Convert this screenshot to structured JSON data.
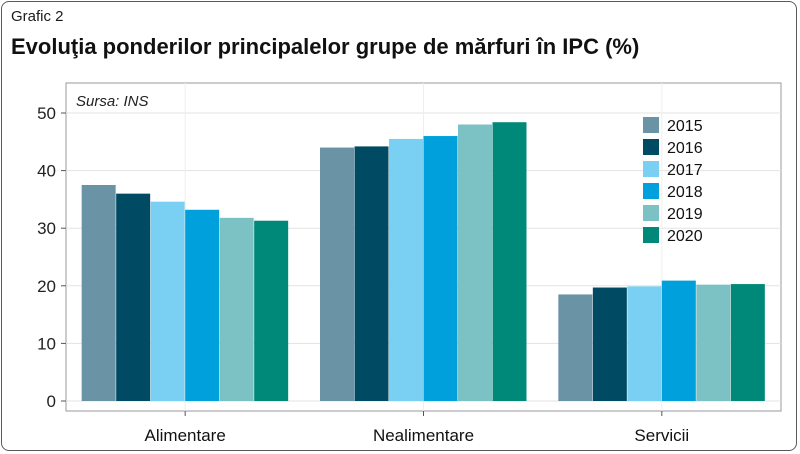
{
  "figure_label": "Grafic 2",
  "chart_data": {
    "type": "bar",
    "title": "Evoluţia ponderilor principalelor grupe de mărfuri în IPC (%)",
    "source_note": "Sursa: INS",
    "categories": [
      "Alimentare",
      "Nealimentare",
      "Servicii"
    ],
    "ylim": [
      0,
      52
    ],
    "yticks": [
      0,
      10,
      20,
      30,
      40,
      50
    ],
    "grid": true,
    "legend_position": "top-right",
    "series": [
      {
        "name": "2015",
        "color": "#6b93a6",
        "values": [
          37.5,
          44.0,
          18.5
        ]
      },
      {
        "name": "2016",
        "color": "#004a63",
        "values": [
          36.0,
          44.2,
          19.7
        ]
      },
      {
        "name": "2017",
        "color": "#79d0f2",
        "values": [
          34.6,
          45.5,
          19.9
        ]
      },
      {
        "name": "2018",
        "color": "#00a0dc",
        "values": [
          33.2,
          46.0,
          20.9
        ]
      },
      {
        "name": "2019",
        "color": "#7cc1c4",
        "values": [
          31.8,
          48.0,
          20.2
        ]
      },
      {
        "name": "2020",
        "color": "#008878",
        "values": [
          31.3,
          48.4,
          20.3
        ]
      }
    ]
  }
}
